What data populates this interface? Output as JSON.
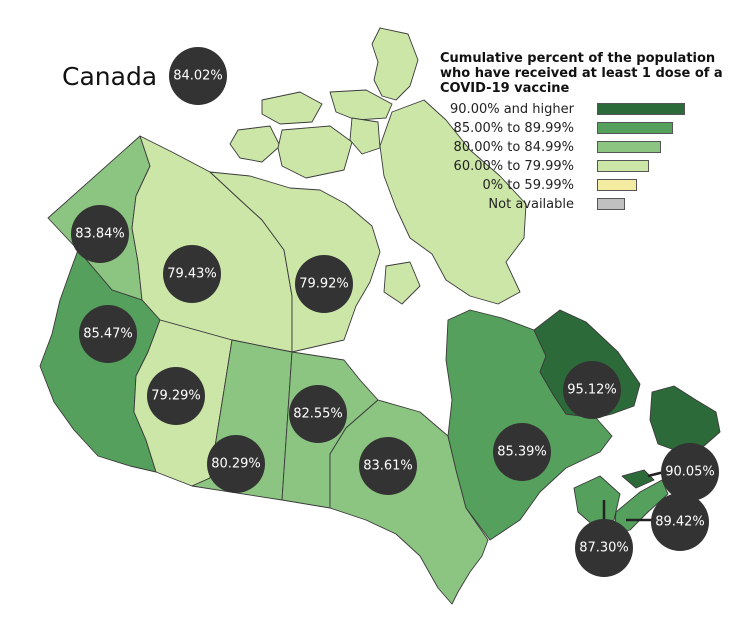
{
  "title": "Canada",
  "legend": {
    "title": "Cumulative percent of the population who have received at least 1 dose of a COVID-19 vaccine",
    "items": [
      {
        "label": "90.00% and higher",
        "color": "#2d6a3a"
      },
      {
        "label": "85.00% to 89.99%",
        "color": "#55a05c"
      },
      {
        "label": "80.00% to 84.99%",
        "color": "#8cc482"
      },
      {
        "label": "60.00% to 79.99%",
        "color": "#cce6a8"
      },
      {
        "label": "0% to 59.99%",
        "color": "#f2eba0"
      },
      {
        "label": "Not available",
        "color": "#c0c0c0"
      }
    ]
  },
  "regions": {
    "canada": {
      "value": "84.02%"
    },
    "yukon": {
      "value": "83.84%",
      "color": "#8cc482"
    },
    "northwest_territories": {
      "value": "79.43%",
      "color": "#cce6a8"
    },
    "nunavut": {
      "value": "79.92%",
      "color": "#cce6a8"
    },
    "british_columbia": {
      "value": "85.47%",
      "color": "#55a05c"
    },
    "alberta": {
      "value": "79.29%",
      "color": "#cce6a8"
    },
    "saskatchewan": {
      "value": "80.29%",
      "color": "#8cc482"
    },
    "manitoba": {
      "value": "82.55%",
      "color": "#8cc482"
    },
    "ontario": {
      "value": "83.61%",
      "color": "#8cc482"
    },
    "quebec": {
      "value": "85.39%",
      "color": "#55a05c"
    },
    "newfoundland_and_labrador": {
      "value": "95.12%",
      "color": "#2d6a3a"
    },
    "prince_edward_island": {
      "value": "90.05%",
      "color": "#2d6a3a"
    },
    "nova_scotia": {
      "value": "89.42%",
      "color": "#55a05c"
    },
    "new_brunswick": {
      "value": "87.30%",
      "color": "#55a05c"
    }
  }
}
